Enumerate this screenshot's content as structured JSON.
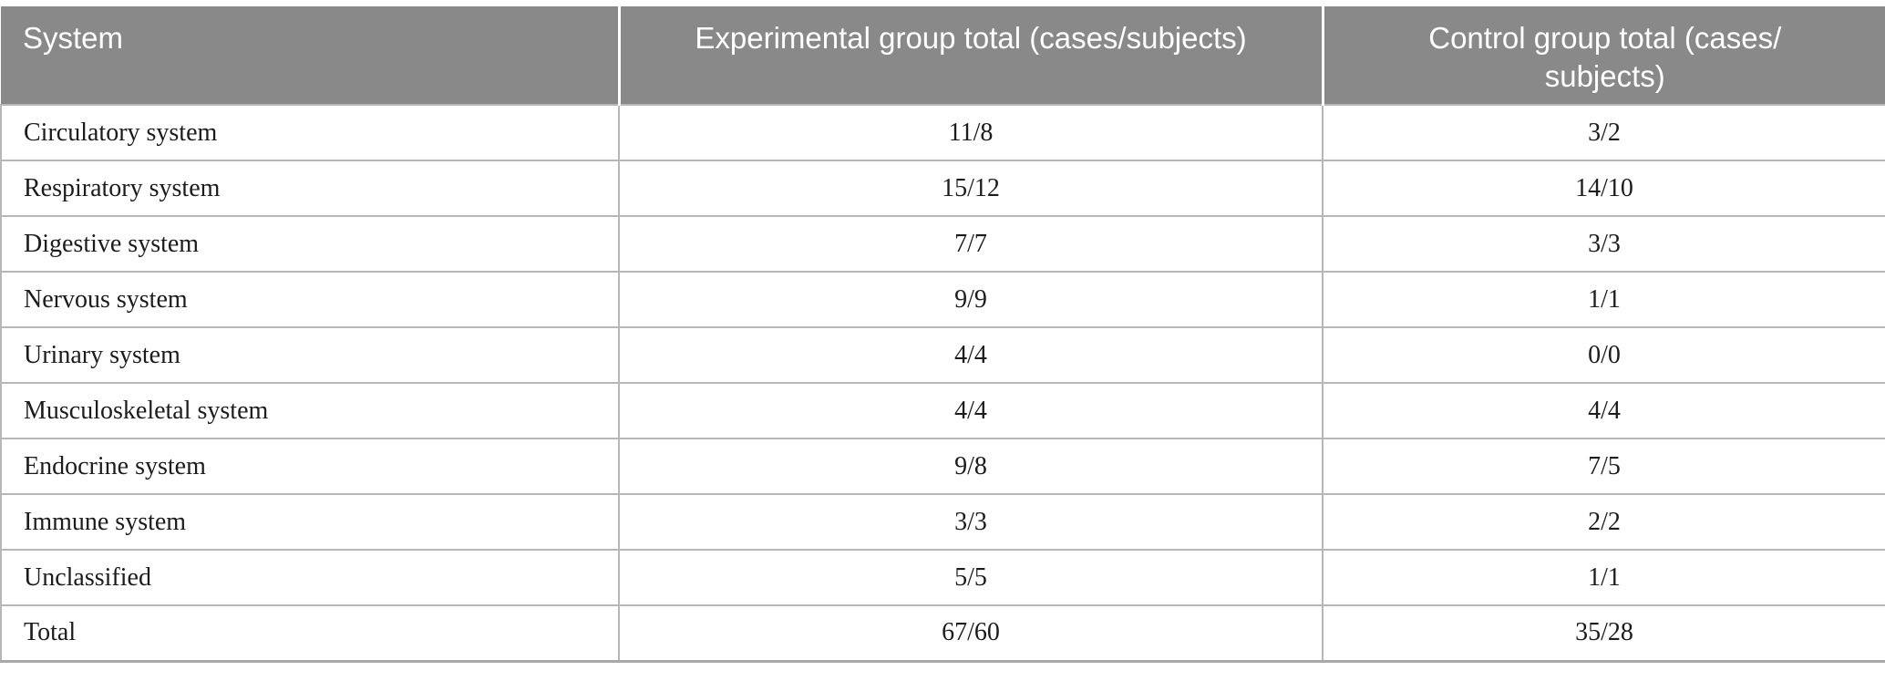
{
  "table": {
    "columns": [
      "System",
      "Experimental group total (cases/subjects)",
      "Control group total (cases/\nsubjects)"
    ],
    "rows": [
      [
        "Circulatory system",
        "11/8",
        "3/2"
      ],
      [
        "Respiratory system",
        "15/12",
        "14/10"
      ],
      [
        "Digestive system",
        "7/7",
        "3/3"
      ],
      [
        "Nervous system",
        "9/9",
        "1/1"
      ],
      [
        "Urinary system",
        "4/4",
        "0/0"
      ],
      [
        "Musculoskeletal system",
        "4/4",
        "4/4"
      ],
      [
        "Endocrine system",
        "9/8",
        "7/5"
      ],
      [
        "Immune system",
        "3/3",
        "2/2"
      ],
      [
        "Unclassified",
        "5/5",
        "1/1"
      ],
      [
        "Total",
        "67/60",
        "35/28"
      ]
    ]
  },
  "colors": {
    "header_bg": "#898989",
    "header_text": "#ffffff",
    "body_text": "#1c1c1c",
    "row_border": "#b7b7b7",
    "table_bottom_border": "#a8a8a8"
  }
}
